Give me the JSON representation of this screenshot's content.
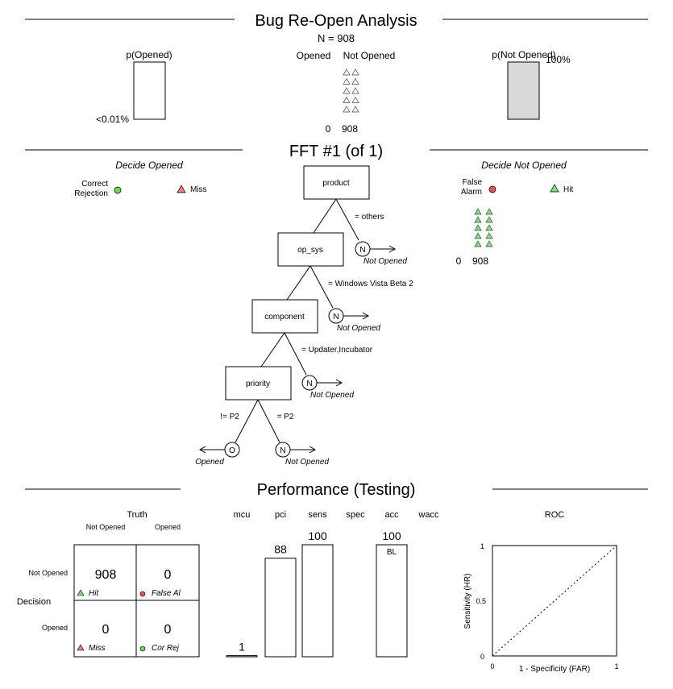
{
  "header": {
    "title": "Bug Re-Open Analysis",
    "n_label": "N = 908",
    "p_left_label": "p(Opened)",
    "p_left_value": "<0.01%",
    "p_left_fraction": 0.0,
    "p_right_label": "p(Not Opened)",
    "p_right_value": "100%",
    "p_right_fraction": 1.0,
    "col_opened": "Opened",
    "col_not_opened": "Not Opened",
    "count_opened": "0",
    "count_not_opened": "908"
  },
  "fft": {
    "title": "FFT #1 (of 1)",
    "decide_left": "Decide Opened",
    "decide_right": "Decide Not Opened",
    "legend": {
      "correct_rejection_line1": "Correct",
      "correct_rejection_line2": "Rejection",
      "miss": "Miss",
      "false_alarm_line1": "False",
      "false_alarm_line2": "Alarm",
      "hit": "Hit"
    },
    "left_count": "0",
    "right_count": "908",
    "nodes": [
      {
        "cue": "product",
        "exit_rule": "= others",
        "exit_symbol": "N",
        "exit_label": "Not Opened"
      },
      {
        "cue": "op_sys",
        "exit_rule": "= Windows Vista Beta 2",
        "exit_symbol": "N",
        "exit_label": "Not Opened"
      },
      {
        "cue": "component",
        "exit_rule": "= Updater,Incubator",
        "exit_symbol": "N",
        "exit_label": "Not Opened"
      },
      {
        "cue": "priority",
        "left_rule": "!= P2",
        "right_rule": "= P2",
        "left_symbol": "O",
        "left_label": "Opened",
        "right_symbol": "N",
        "right_label": "Not Opened"
      }
    ]
  },
  "performance": {
    "title": "Performance (Testing)",
    "truth_label": "Truth",
    "truth_cols": [
      "Not Opened",
      "Opened"
    ],
    "decision_label": "Decision",
    "decision_rows": [
      "Not Opened",
      "Opened"
    ],
    "cells": {
      "hit": {
        "value": "908",
        "label": "Hit"
      },
      "false_alarm": {
        "value": "0",
        "label": "False Al"
      },
      "miss": {
        "value": "0",
        "label": "Miss"
      },
      "cor_rej": {
        "value": "0",
        "label": "Cor Rej"
      }
    },
    "roc": {
      "title": "ROC",
      "xlabel": "1 - Specificity (FAR)",
      "ylabel": "Sensitivity (HR)",
      "x_ticks": [
        "0",
        "1"
      ],
      "y_ticks": [
        "0",
        "0.5",
        "1"
      ]
    },
    "bl_label": "BL"
  },
  "colors": {
    "hit": "#7fe07f",
    "miss": "#f27b7b",
    "false_alarm": "#f05050",
    "correct_rejection": "#66dd44",
    "bar_fill_right": "#d9d9d9",
    "triangle_gray": "#ffffff"
  },
  "chart_data": {
    "type": "bar",
    "categories": [
      "mcu",
      "pci",
      "sens",
      "spec",
      "acc",
      "wacc"
    ],
    "values": [
      1,
      88,
      100,
      null,
      100,
      null
    ],
    "value_labels": [
      "1",
      "88",
      "100",
      "",
      "100",
      ""
    ],
    "ylim": [
      0,
      100
    ]
  }
}
